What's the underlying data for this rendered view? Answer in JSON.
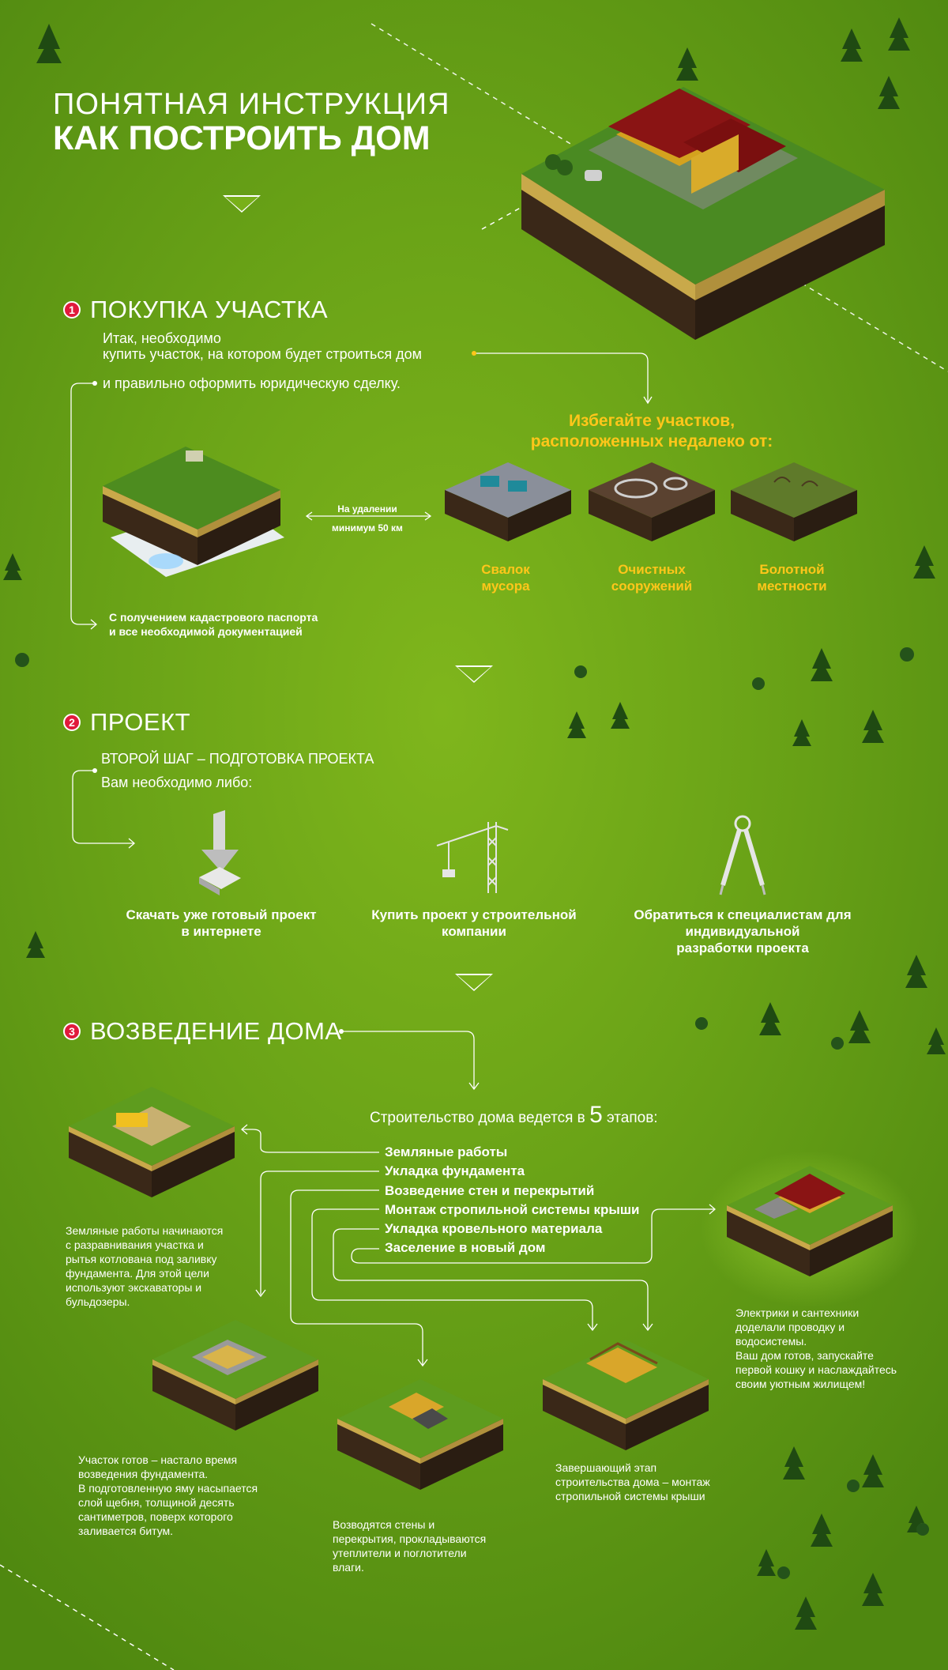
{
  "header": {
    "line1": "ПОНЯТНАЯ ИНСТРУКЦИЯ",
    "line2": "КАК ПОСТРОИТЬ ДОМ"
  },
  "section1": {
    "number": "1",
    "title": "ПОКУПКА УЧАСТКА",
    "intro_line1": "Итак, необходимо",
    "intro_line2": "купить участок, на котором будет строиться дом",
    "intro_line3": "и правильно оформить юридическую сделку.",
    "avoid_line1": "Избегайте участков,",
    "avoid_line2": "расположенных недалеко от:",
    "distance_line1": "На удалении",
    "distance_line2": "минимум 50 км",
    "doc_line1": "С получением кадастрового паспорта",
    "doc_line2": "и все необходимой документацией",
    "avoid_items": [
      {
        "line1": "Свалок",
        "line2": "мусора"
      },
      {
        "line1": "Очистных",
        "line2": "сооружений"
      },
      {
        "line1": "Болотной",
        "line2": "местности"
      }
    ]
  },
  "section2": {
    "number": "2",
    "title": "ПРОЕКТ",
    "sub1": "ВТОРОЙ ШАГ – ПОДГОТОВКА ПРОЕКТА",
    "sub2": "Вам необходимо либо:",
    "options": [
      {
        "line1": "Скачать уже готовый проект",
        "line2": "в интернете",
        "line3": "",
        "icon": "download-icon"
      },
      {
        "line1": "Купить проект у строительной",
        "line2": "компании",
        "line3": "",
        "icon": "crane-icon"
      },
      {
        "line1": "Обратиться к специалистам для",
        "line2": "индивидуальной",
        "line3": "разработки проекта",
        "icon": "compass-icon"
      }
    ]
  },
  "section3": {
    "number": "3",
    "title": "ВОЗВЕДЕНИЕ ДОМА",
    "stages_intro_pre": "Строительство дома ведется в ",
    "stages_count": "5",
    "stages_intro_post": " этапов:",
    "stages": [
      "Земляные работы",
      "Укладка фундамента",
      "Возведение стен и перекрытий",
      "Монтаж стропильной системы крыши",
      "Укладка кровельного материала",
      "Заселение в новый дом"
    ],
    "desc_earthworks": [
      "Земляные работы начинаются",
      "с разравнивания участка и",
      "рытья котлована под заливку",
      "фундамента. Для этой цели",
      "используют экскаваторы и",
      "бульдозеры."
    ],
    "desc_foundation": [
      "Участок готов – настало время",
      "возведения фундамента.",
      "В подготовленную яму насыпается",
      "слой щебня, толщиной десять",
      "сантиметров, поверх которого",
      "заливается битум."
    ],
    "desc_walls": [
      "Возводятся стены и",
      "перекрытия, прокладываются",
      "утеплители и поглотители",
      "влаги."
    ],
    "desc_roof": [
      "Завершающий этап",
      "строительства дома – монтаж",
      "стропильной системы крыши"
    ],
    "desc_final": [
      "Электрики и сантехники",
      "доделали проводку и",
      "водосистемы.",
      "Ваш дом готов, запускайте",
      "первой кошку и наслаждайтесь",
      "своим уютным жилищем!"
    ]
  },
  "colors": {
    "accent_yellow": "#ffc61a",
    "number_badge": "#e01a3c",
    "background_green": "#6aa317"
  }
}
